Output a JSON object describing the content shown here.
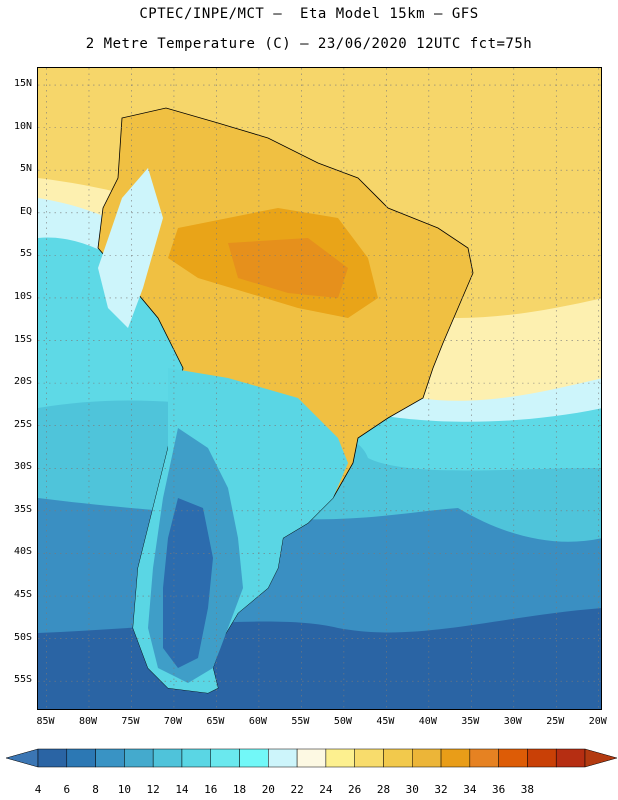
{
  "header": {
    "title_line1": "CPTEC/INPE/MCT –  Eta Model 15km – GFS",
    "title_line2": "2 Metre Temperature (C) – 23/06/2020 12UTC fct=75h"
  },
  "map": {
    "lat_labels": [
      "15N",
      "10N",
      "5N",
      "EQ",
      "5S",
      "10S",
      "15S",
      "20S",
      "25S",
      "30S",
      "35S",
      "40S",
      "45S",
      "50S",
      "55S"
    ],
    "lat_values": [
      15,
      10,
      5,
      0,
      -5,
      -10,
      -15,
      -20,
      -25,
      -30,
      -35,
      -40,
      -45,
      -50,
      -55
    ],
    "lon_labels": [
      "85W",
      "80W",
      "75W",
      "70W",
      "65W",
      "60W",
      "55W",
      "50W",
      "45W",
      "40W",
      "35W",
      "30W",
      "25W",
      "20W"
    ],
    "lon_values": [
      -85,
      -80,
      -75,
      -70,
      -65,
      -60,
      -55,
      -50,
      -45,
      -40,
      -35,
      -30,
      -25,
      -20
    ],
    "extent": {
      "lon_min": -86,
      "lon_max": -19.5,
      "lat_min": -58.5,
      "lat_max": 17
    }
  },
  "colorbar": {
    "labels": [
      "4",
      "6",
      "8",
      "10",
      "12",
      "14",
      "16",
      "18",
      "20",
      "22",
      "24",
      "26",
      "28",
      "30",
      "32",
      "34",
      "36",
      "38"
    ],
    "colors": [
      "#2a64a4",
      "#2c78b4",
      "#3993c4",
      "#44aacd",
      "#4fc3da",
      "#5ad6e4",
      "#6ae8ee",
      "#72f8f8",
      "#cdf5fb",
      "#fdf9e3",
      "#fdf08f",
      "#f8dc6c",
      "#f2c94c",
      "#ecb538",
      "#e99d18",
      "#e68222",
      "#dd5c06",
      "#c94006",
      "#b62e12"
    ],
    "low_color": "#3b76b4",
    "high_color": "#b33a10"
  }
}
